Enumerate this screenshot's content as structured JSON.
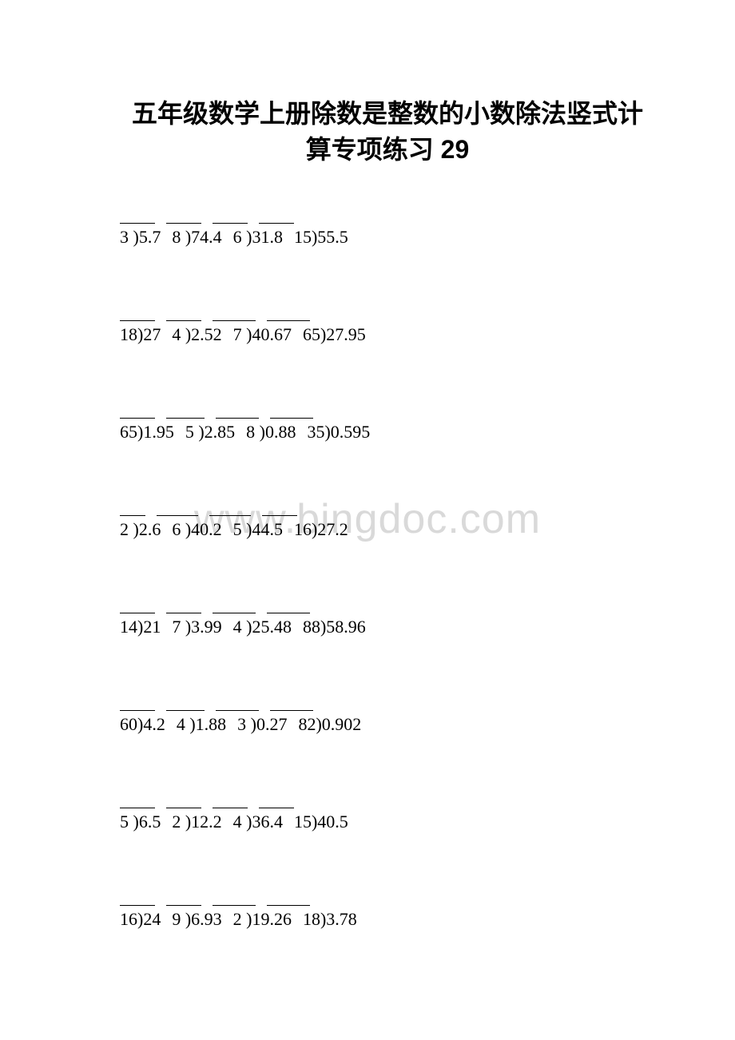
{
  "title": {
    "line1": "五年级数学上册除数是整数的小数除法竖式计",
    "line2": "算专项练习 29"
  },
  "watermark": "www.bingdoc.com",
  "style": {
    "background_color": "#ffffff",
    "text_color": "#000000",
    "watermark_color": "#d9d9d9",
    "title_fontsize": 32,
    "body_fontsize": 22,
    "row_spacing": 72
  },
  "rows": [
    {
      "blank_widths": [
        44,
        44,
        44,
        44
      ],
      "problems": [
        "3 )5.7",
        "8 )74.4",
        "6 )31.8",
        "15)55.5"
      ]
    },
    {
      "blank_widths": [
        44,
        44,
        54,
        54
      ],
      "problems": [
        "18)27",
        "4 )2.52",
        "7 )40.67",
        "65)27.95"
      ]
    },
    {
      "blank_widths": [
        44,
        48,
        54,
        54
      ],
      "problems": [
        "65)1.95",
        "5 )2.85",
        "8 )0.88",
        "35)0.595"
      ]
    },
    {
      "blank_widths": [
        32,
        52,
        52,
        44
      ],
      "problems": [
        "2 )2.6",
        "6 )40.2",
        "5 )44.5",
        "16)27.2"
      ]
    },
    {
      "blank_widths": [
        44,
        44,
        54,
        54
      ],
      "problems": [
        "14)21",
        "7 )3.99",
        "4 )25.48",
        "88)58.96"
      ]
    },
    {
      "blank_widths": [
        44,
        48,
        54,
        54
      ],
      "problems": [
        "60)4.2",
        "4 )1.88",
        "3 )0.27",
        "82)0.902"
      ]
    },
    {
      "blank_widths": [
        44,
        44,
        44,
        44
      ],
      "problems": [
        "5 )6.5",
        "2 )12.2",
        "4 )36.4",
        "15)40.5"
      ]
    },
    {
      "blank_widths": [
        44,
        44,
        54,
        54
      ],
      "problems": [
        "16)24",
        "9 )6.93",
        "2 )19.26",
        "18)3.78"
      ]
    }
  ]
}
